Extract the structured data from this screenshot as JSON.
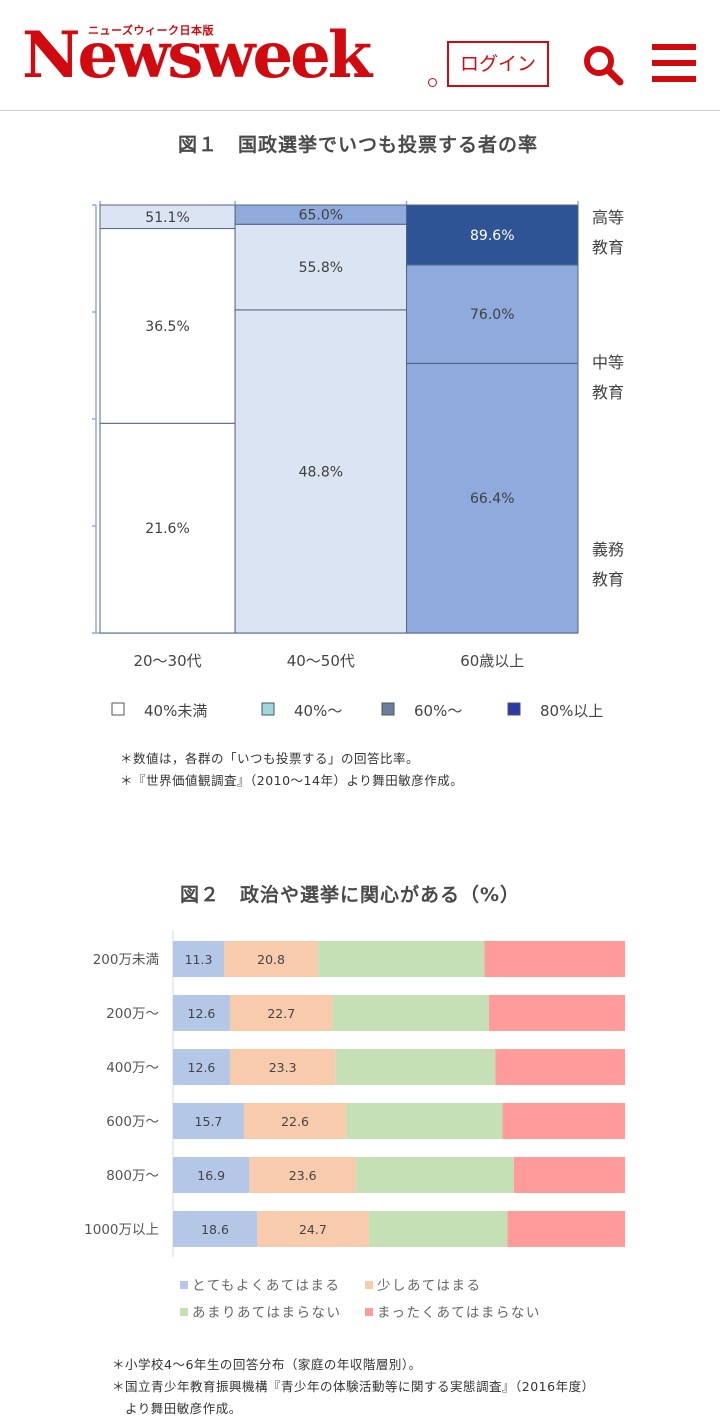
{
  "header": {
    "logo_text": "Newsweek",
    "logo_tagline": "ニューズウィーク日本版",
    "login_label": "ログイン"
  },
  "figure1": {
    "title": "図１　国政選挙でいつも投票する者の率",
    "notes": [
      "＊数値は，各群の「いつも投票する」の回答比率。",
      "＊『世界価値観調査』（2010〜14年）より舞田敏彦作成。"
    ]
  },
  "figure2": {
    "title": "図２　政治や選挙に関心がある（%）",
    "notes": [
      "＊小学校4〜6年生の回答分布（家庭の年収階層別）。",
      "＊国立青少年教育振興機構『青少年の体験活動等に関する実態調査』（2016年度）",
      "　より舞田敏彦作成。"
    ]
  },
  "colors": {
    "brand": "#d10a10",
    "fig1_under40": "#ffffff",
    "fig1_40": "#dbe4f3",
    "fig1_60": "#8faadc",
    "fig1_80": "#2f5496",
    "fig2_very": "#b4c7e7",
    "fig2_some": "#f8cbad",
    "fig2_notmuch": "#c5e0b4",
    "fig2_notatall": "#ff9b9b"
  },
  "chart_data": [
    {
      "type": "bar",
      "title": "図１　国政選挙でいつも投票する者の率",
      "categories": [
        "20〜30代",
        "40〜50代",
        "60歳以上"
      ],
      "row_labels": [
        {
          "line1": "高等",
          "line2": "教育"
        },
        {
          "line1": "中等",
          "line2": "教育"
        },
        {
          "line1": "義務",
          "line2": "教育"
        }
      ],
      "column_weights": [
        0.26,
        0.33,
        0.33
      ],
      "row_breaks": [
        [
          0.0,
          0.49,
          0.945
        ],
        [
          0.0,
          0.755,
          0.955
        ],
        [
          0.0,
          0.63,
          0.86
        ]
      ],
      "series": [
        {
          "name": "義務教育",
          "values": [
            21.6,
            48.8,
            66.4
          ],
          "labels": [
            "21.6%",
            "48.8%",
            "66.4%"
          ]
        },
        {
          "name": "中等教育",
          "values": [
            36.5,
            55.8,
            76.0
          ],
          "labels": [
            "36.5%",
            "55.8%",
            "76.0%"
          ]
        },
        {
          "name": "高等教育",
          "values": [
            51.1,
            65.0,
            89.6
          ],
          "labels": [
            "51.1%",
            "65.0%",
            "89.6%"
          ]
        }
      ],
      "legend": [
        {
          "label": "40%未満",
          "color": "#ffffff"
        },
        {
          "label": "40%〜",
          "color": "#9fd6e0"
        },
        {
          "label": "60%〜",
          "color": "#6b7f9c"
        },
        {
          "label": "80%以上",
          "color": "#2b3aa8"
        }
      ],
      "legend_position": "bottom"
    },
    {
      "type": "bar",
      "title": "図２　政治や選挙に関心がある（%）",
      "categories": [
        "200万未満",
        "200万〜",
        "400万〜",
        "600万〜",
        "800万〜",
        "1000万以上"
      ],
      "series": [
        {
          "name": "とてもよくあてはまる",
          "values": [
            11.3,
            12.6,
            12.6,
            15.7,
            16.9,
            18.6
          ]
        },
        {
          "name": "少しあてはまる",
          "values": [
            20.8,
            22.7,
            23.3,
            22.6,
            23.6,
            24.7
          ]
        },
        {
          "name": "あまりあてはまらない",
          "values": [
            36.8,
            34.6,
            35.4,
            34.6,
            34.9,
            30.7
          ]
        },
        {
          "name": "まったくあてはまらない",
          "values": [
            31.1,
            30.1,
            28.7,
            27.1,
            24.6,
            26.0
          ]
        }
      ],
      "value_labels_series": [
        0,
        1
      ],
      "stacked": true,
      "orientation": "horizontal",
      "xlim": [
        0,
        100
      ],
      "legend_position": "bottom"
    }
  ]
}
